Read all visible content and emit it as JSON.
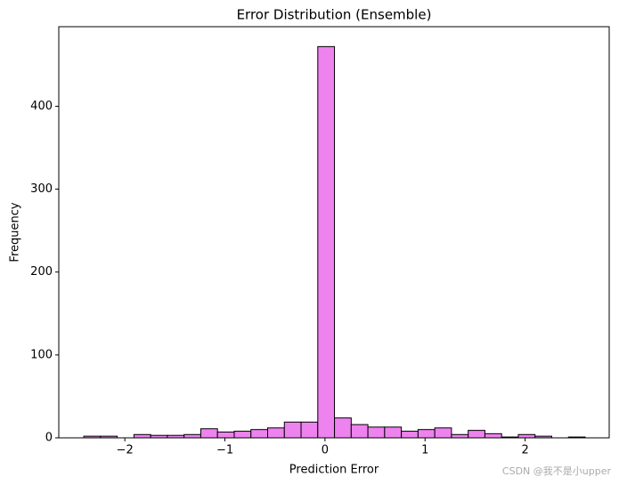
{
  "chart_data": {
    "type": "histogram",
    "title": "Error Distribution (Ensemble)",
    "x_label": "Prediction Error",
    "y_label": "Frequency",
    "bins": [
      -2.41,
      -2.243,
      -2.076,
      -1.909,
      -1.742,
      -1.575,
      -1.408,
      -1.241,
      -1.074,
      -0.907,
      -0.74,
      -0.573,
      -0.406,
      -0.239,
      -0.072,
      0.095,
      0.262,
      0.429,
      0.596,
      0.763,
      0.93,
      1.097,
      1.264,
      1.431,
      1.598,
      1.765,
      1.932,
      2.099,
      2.266,
      2.433,
      2.6
    ],
    "values": [
      2,
      2,
      0,
      4,
      3,
      3,
      4,
      11,
      7,
      8,
      10,
      12,
      19,
      19,
      472,
      24,
      16,
      13,
      13,
      8,
      10,
      12,
      4,
      9,
      5,
      1,
      4,
      2,
      0,
      1
    ],
    "color": "#ee82ee",
    "edgecolor": "#000000",
    "xlim": [
      -2.66,
      2.84
    ],
    "ylim": [
      0,
      496
    ],
    "xticks": [
      {
        "value": -2,
        "label": "−2"
      },
      {
        "value": -1,
        "label": "−1"
      },
      0,
      1,
      2
    ],
    "yticks": [
      0,
      100,
      200,
      300,
      400
    ],
    "watermark": "CSDN @我不是小upper"
  }
}
